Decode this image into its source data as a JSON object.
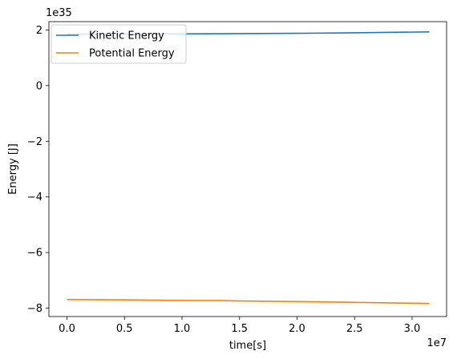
{
  "chart_data": {
    "type": "line",
    "title": "",
    "xlabel": "time[s]",
    "ylabel": "Energy [J]",
    "x_offset_label": "1e7",
    "y_offset_label": "1e35",
    "xlim": [
      -0.157,
      3.3
    ],
    "ylim": [
      -8.3,
      2.3
    ],
    "x_ticks": [
      0.0,
      0.5,
      1.0,
      1.5,
      2.0,
      2.5,
      3.0
    ],
    "x_tick_labels": [
      "0.0",
      "0.5",
      "1.0",
      "1.5",
      "2.0",
      "2.5",
      "3.0"
    ],
    "y_ticks": [
      2,
      0,
      -2,
      -4,
      -6,
      -8
    ],
    "y_tick_labels": [
      "2",
      "0",
      "−2",
      "−4",
      "−6",
      "−8"
    ],
    "grid": false,
    "legend_position": "top-left",
    "series": [
      {
        "name": "Kinetic Energy",
        "color": "#1f77b4",
        "x": [
          0.0,
          0.5,
          1.0,
          1.5,
          2.0,
          2.5,
          3.15
        ],
        "y": [
          1.85,
          1.85,
          1.86,
          1.87,
          1.88,
          1.9,
          1.93
        ]
      },
      {
        "name": "Potential Energy",
        "color": "#ff7f0e",
        "x": [
          0.0,
          0.5,
          1.0,
          1.3,
          1.5,
          2.0,
          2.5,
          3.15
        ],
        "y": [
          -7.69,
          -7.7,
          -7.72,
          -7.72,
          -7.74,
          -7.76,
          -7.79,
          -7.83
        ]
      }
    ]
  }
}
